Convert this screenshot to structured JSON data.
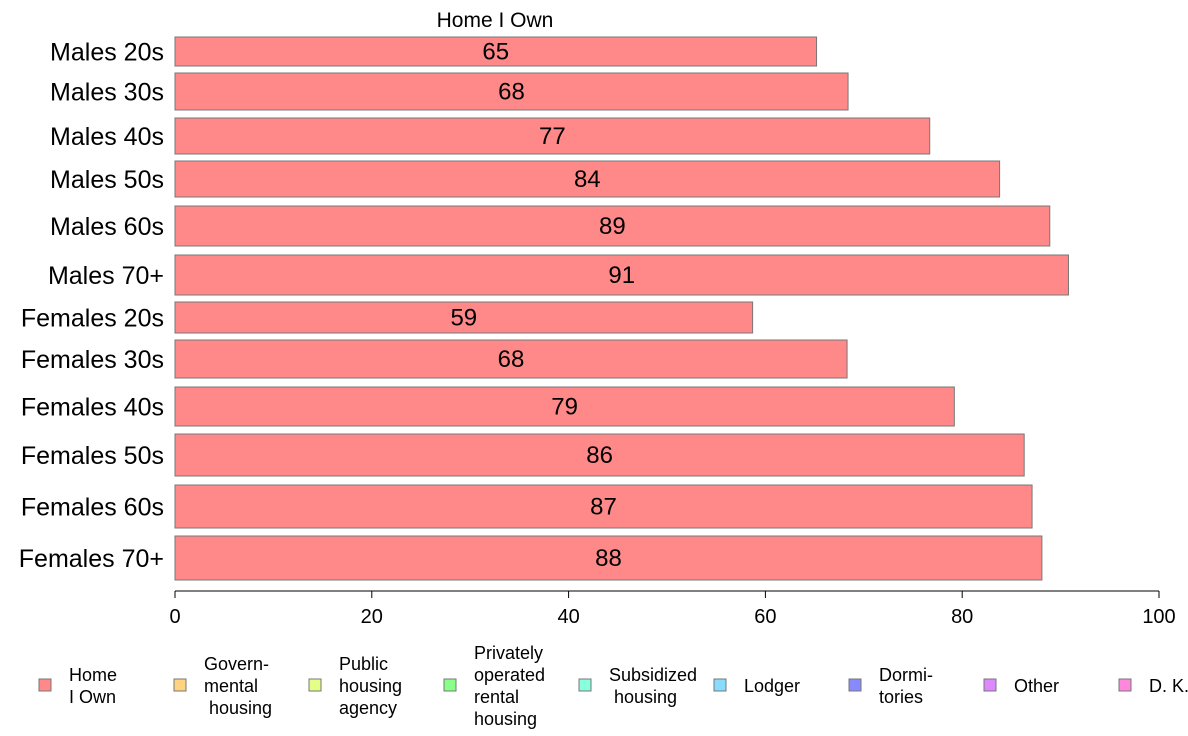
{
  "chart_data": {
    "type": "bar",
    "orientation": "horizontal",
    "title": "Home I Own",
    "categories": [
      "Males 20s",
      "Males 30s",
      "Males 40s",
      "Males 50s",
      "Males 60s",
      "Males 70+",
      "Females 20s",
      "Females 30s",
      "Females 40s",
      "Females 50s",
      "Females 60s",
      "Females 70+"
    ],
    "values": [
      65.2,
      68.4,
      76.7,
      83.8,
      88.9,
      90.8,
      58.7,
      68.3,
      79.2,
      86.3,
      87.1,
      88.1
    ],
    "data_labels": [
      "65",
      "68",
      "77",
      "84",
      "89",
      "91",
      "59",
      "68",
      "79",
      "86",
      "87",
      "88"
    ],
    "bar_color": "#ff8888",
    "xlim": [
      0,
      100
    ],
    "xticks": [
      0,
      20,
      40,
      60,
      80,
      100
    ],
    "xlabel": "",
    "ylabel": "",
    "grid": false,
    "legend_position": "bottom",
    "legend": [
      {
        "lines": [
          "Home",
          "I Own"
        ],
        "color": "#ff8888"
      },
      {
        "lines": [
          "Govern-",
          "mental",
          " housing"
        ],
        "color": "#ffd37f"
      },
      {
        "lines": [
          "Public",
          "housing",
          "agency"
        ],
        "color": "#e4ff88"
      },
      {
        "lines": [
          "Privately",
          "operated",
          "rental",
          "housing"
        ],
        "color": "#88ff88"
      },
      {
        "lines": [
          "Subsidized",
          " housing"
        ],
        "color": "#88ffdd"
      },
      {
        "lines": [
          "Lodger"
        ],
        "color": "#88ddff"
      },
      {
        "lines": [
          "Dormi-",
          "tories"
        ],
        "color": "#8888ff"
      },
      {
        "lines": [
          "Other"
        ],
        "color": "#dd88ff"
      },
      {
        "lines": [
          "D. K."
        ],
        "color": "#ff88dd"
      }
    ]
  }
}
